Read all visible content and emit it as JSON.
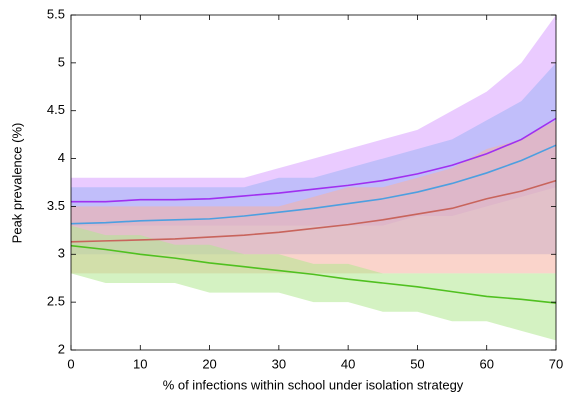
{
  "chart_data": {
    "type": "line",
    "xlabel": "% of infections within school under isolation strategy",
    "ylabel": "Peak prevalence (%)",
    "x": [
      0,
      5,
      10,
      15,
      20,
      25,
      30,
      35,
      40,
      45,
      50,
      55,
      60,
      65,
      70
    ],
    "xlim": [
      0,
      70
    ],
    "xticks": [
      0,
      10,
      20,
      30,
      40,
      50,
      60,
      70
    ],
    "ylim": [
      2,
      5.5
    ],
    "yticks": [
      2,
      2.5,
      3,
      3.5,
      4,
      4.5,
      5,
      5.5
    ],
    "series": [
      {
        "color": "#a030f0",
        "band_color": "#d9a0ff",
        "values": [
          3.55,
          3.55,
          3.57,
          3.57,
          3.58,
          3.61,
          3.64,
          3.68,
          3.72,
          3.77,
          3.84,
          3.93,
          4.05,
          4.2,
          4.42
        ],
        "upper": [
          3.8,
          3.8,
          3.8,
          3.8,
          3.8,
          3.8,
          3.9,
          4.0,
          4.1,
          4.2,
          4.3,
          4.5,
          4.7,
          5.0,
          5.5
        ],
        "lower": [
          3.3,
          3.3,
          3.3,
          3.3,
          3.3,
          3.3,
          3.3,
          3.3,
          3.3,
          3.3,
          3.4,
          3.4,
          3.5,
          3.6,
          3.7
        ]
      },
      {
        "color": "#4d9fe0",
        "band_color": "#9fb4f5",
        "values": [
          3.32,
          3.33,
          3.35,
          3.36,
          3.37,
          3.4,
          3.44,
          3.48,
          3.53,
          3.58,
          3.65,
          3.74,
          3.85,
          3.98,
          4.14
        ],
        "upper": [
          3.7,
          3.7,
          3.7,
          3.7,
          3.7,
          3.7,
          3.8,
          3.8,
          3.9,
          4.0,
          4.1,
          4.2,
          4.4,
          4.6,
          5.0
        ],
        "lower": [
          3.0,
          3.0,
          3.0,
          3.0,
          3.0,
          3.0,
          3.0,
          3.0,
          3.0,
          3.0,
          3.0,
          3.0,
          3.0,
          3.0,
          3.0
        ]
      },
      {
        "color": "#c8645c",
        "band_color": "#f5b0a0",
        "values": [
          3.13,
          3.14,
          3.15,
          3.16,
          3.18,
          3.2,
          3.23,
          3.27,
          3.31,
          3.36,
          3.42,
          3.48,
          3.58,
          3.66,
          3.77
        ],
        "upper": [
          3.5,
          3.5,
          3.5,
          3.5,
          3.5,
          3.5,
          3.5,
          3.6,
          3.7,
          3.7,
          3.8,
          3.9,
          4.1,
          4.2,
          4.4
        ],
        "lower": [
          2.8,
          2.8,
          2.8,
          2.8,
          2.8,
          2.8,
          2.8,
          2.8,
          2.8,
          2.8,
          2.8,
          2.8,
          2.8,
          2.8,
          2.8
        ]
      },
      {
        "color": "#50c020",
        "band_color": "#b0e890",
        "values": [
          3.09,
          3.05,
          3.0,
          2.96,
          2.91,
          2.87,
          2.83,
          2.79,
          2.74,
          2.7,
          2.66,
          2.61,
          2.56,
          2.53,
          2.49
        ],
        "upper": [
          3.3,
          3.2,
          3.2,
          3.1,
          3.1,
          3.0,
          3.0,
          2.9,
          2.9,
          2.8,
          2.8,
          2.8,
          2.8,
          2.8,
          2.8
        ],
        "lower": [
          2.8,
          2.7,
          2.7,
          2.7,
          2.6,
          2.6,
          2.6,
          2.5,
          2.5,
          2.4,
          2.4,
          2.3,
          2.3,
          2.2,
          2.1
        ]
      }
    ]
  }
}
